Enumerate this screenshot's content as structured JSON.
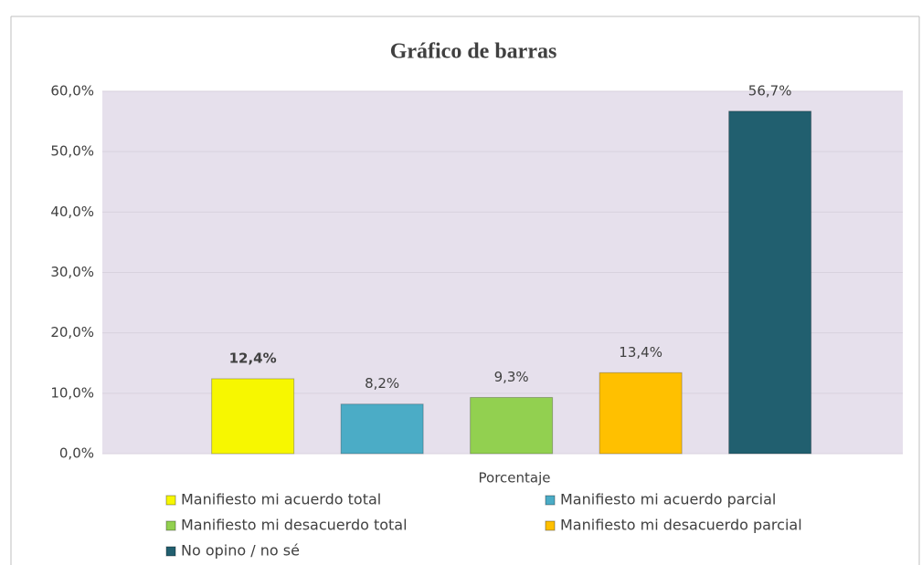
{
  "chart_data": {
    "type": "bar",
    "title": "Gráfico de barras",
    "categories": [
      "Porcentaje"
    ],
    "series": [
      {
        "name": "Manifiesto mi acuerdo total",
        "color": "#f7f700",
        "values": [
          12.4
        ],
        "value_labels": [
          "12,4%"
        ]
      },
      {
        "name": "Manifiesto mi acuerdo parcial",
        "color": "#4bacc6",
        "values": [
          8.2
        ],
        "value_labels": [
          "8,2%"
        ]
      },
      {
        "name": "Manifiesto mi desacuerdo total",
        "color": "#92d050",
        "values": [
          9.3
        ],
        "value_labels": [
          "9,3%"
        ]
      },
      {
        "name": "Manifiesto mi desacuerdo parcial",
        "color": "#ffc000",
        "values": [
          13.4
        ],
        "value_labels": [
          "13,4%"
        ]
      },
      {
        "name": "No opino / no sé",
        "color": "#215f6f",
        "values": [
          56.7
        ],
        "value_labels": [
          "56,7%"
        ]
      }
    ],
    "ylim": [
      0,
      60
    ],
    "yticks": [
      {
        "value": 0,
        "label": "0,0%"
      },
      {
        "value": 10,
        "label": "10,0%"
      },
      {
        "value": 20,
        "label": "20,0%"
      },
      {
        "value": 30,
        "label": "30,0%"
      },
      {
        "value": 40,
        "label": "40,0%"
      },
      {
        "value": 50,
        "label": "50,0%"
      },
      {
        "value": 60,
        "label": "60,0%"
      }
    ],
    "grid": true
  }
}
